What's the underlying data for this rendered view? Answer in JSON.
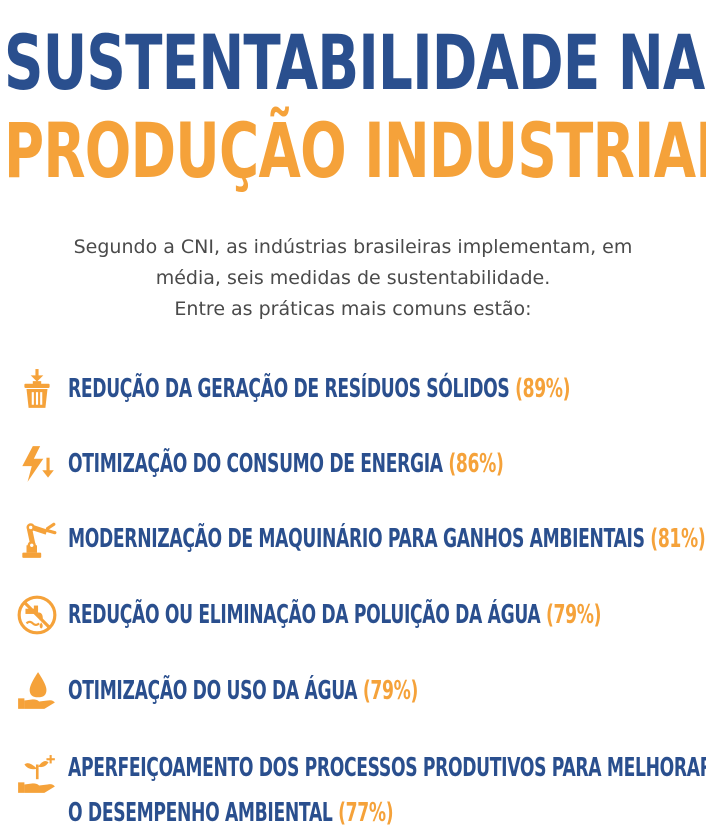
{
  "title": {
    "line1": "SUSTENTABILIDADE NA",
    "line2": "PRODUÇÃO INDUSTRIAL"
  },
  "intro": {
    "line1": "Segundo a CNI, as indústrias brasileiras implementam, em",
    "line2": "média, seis medidas de sustentabilidade.",
    "line3": "Entre as práticas mais comuns estão:"
  },
  "colors": {
    "blue": "#2a4f8e",
    "orange": "#f5a23a",
    "text_gray": "#4a4a4a"
  },
  "items": [
    {
      "icon": "trash-bin-icon",
      "label": "REDUÇÃO DA GERAÇÃO DE RESÍDUOS SÓLIDOS",
      "percent": "(89%)"
    },
    {
      "icon": "lightning-down-icon",
      "label": "OTIMIZAÇÃO DO CONSUMO DE ENERGIA",
      "percent": "(86%)"
    },
    {
      "icon": "robot-arm-icon",
      "label": "MODERNIZAÇÃO DE MAQUINÁRIO PARA GANHOS AMBIENTAIS",
      "percent": "(81%)"
    },
    {
      "icon": "no-water-pollution-icon",
      "label": "REDUÇÃO OU ELIMINAÇÃO DA POLUIÇÃO DA ÁGUA",
      "percent": "(79%)"
    },
    {
      "icon": "water-drop-hand-icon",
      "label": "OTIMIZAÇÃO DO USO DA ÁGUA",
      "percent": "(79%)"
    },
    {
      "icon": "plant-hand-icon",
      "label_line1": "APERFEIÇOAMENTO DOS PROCESSOS PRODUTIVOS PARA MELHORAR",
      "label_line2": "O DESEMPENHO AMBIENTAL",
      "percent": "(77%)"
    }
  ]
}
